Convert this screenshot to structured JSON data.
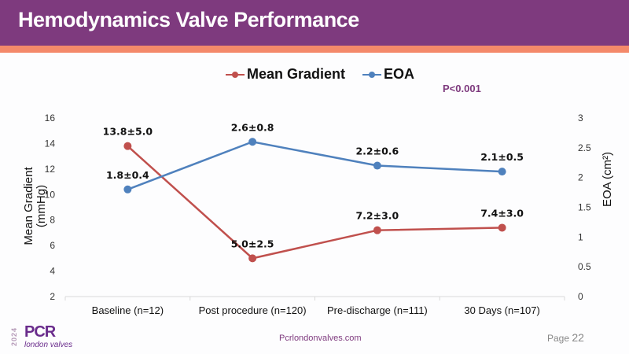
{
  "header": {
    "title": "Hemodynamics Valve Performance"
  },
  "annotation": {
    "pvalue": "P<0.001"
  },
  "footer": {
    "url": "Pcrlondonvalves.com",
    "page_label": "Page",
    "page_number": "22"
  },
  "logo": {
    "year": "2024",
    "brand": "PCR",
    "subtitle": "london valves"
  },
  "colors": {
    "header": "#7e3a7e",
    "accent": "#f4896a",
    "mean_gradient": "#c0504d",
    "eoa": "#4f81bd"
  },
  "chart_data": {
    "type": "line",
    "title": "",
    "categories": [
      "Baseline (n=12)",
      "Post procedure (n=120)",
      "Pre-discharge (n=111)",
      "30 Days (n=107)"
    ],
    "ylabel": "Mean Gradient (mmHg)",
    "ylabel_lines": [
      "Mean Gradient",
      "(mmHg)"
    ],
    "y2label": "EOA  (cm²)",
    "ylim": [
      2,
      16
    ],
    "yticks": [
      "2",
      "4",
      "6",
      "8",
      "10",
      "12",
      "14",
      "16"
    ],
    "y2lim": [
      0,
      3
    ],
    "y2ticks": [
      "0",
      "0.5",
      "1",
      "1.5",
      "2",
      "2.5",
      "3"
    ],
    "grid": false,
    "legend_position": "top",
    "series": [
      {
        "name": "Mean Gradient",
        "axis": "left",
        "color": "#c0504d",
        "values": [
          13.8,
          5.0,
          7.2,
          7.4
        ],
        "labels": [
          "13.8±5.0",
          "5.0±2.5",
          "7.2±3.0",
          "7.4±3.0"
        ]
      },
      {
        "name": "EOA",
        "axis": "right",
        "color": "#4f81bd",
        "values": [
          1.8,
          2.6,
          2.2,
          2.1
        ],
        "labels": [
          "1.8±0.4",
          "2.6±0.8",
          "2.2±0.6",
          "2.1±0.5"
        ]
      }
    ]
  }
}
